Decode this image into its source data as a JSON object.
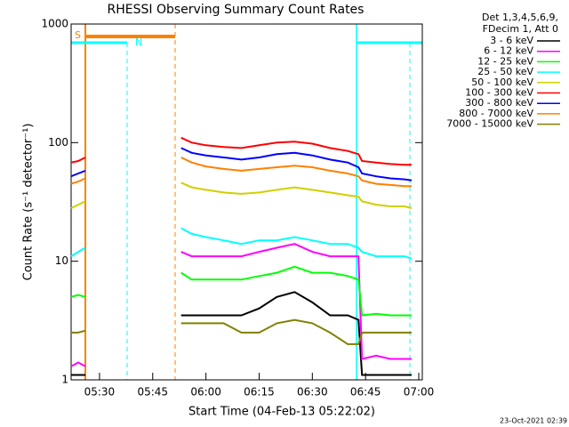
{
  "chart_data": {
    "type": "line",
    "title": "RHESSI Observing Summary Count Rates",
    "xlabel": "Start Time (04-Feb-13 05:22:02)",
    "ylabel": "Count Rate (s⁻¹ detector⁻¹)",
    "legend_header": [
      "Det 1,3,4,5,6,9,",
      "FDecim 1, Att 0"
    ],
    "annotations": [
      "S",
      "N"
    ],
    "footer": "23-Oct-2021 02:39",
    "log_y": true,
    "xlim": [
      "05:22",
      "07:01"
    ],
    "xticks": [
      "05:30",
      "05:45",
      "06:00",
      "06:15",
      "06:30",
      "06:45",
      "07:00"
    ],
    "ylim": [
      1,
      1000
    ],
    "yticks": [
      1,
      10,
      100,
      1000
    ],
    "x": [
      "05:22",
      "05:24",
      "05:26",
      "05:40",
      "05:53",
      "05:56",
      "06:00",
      "06:05",
      "06:10",
      "06:15",
      "06:20",
      "06:25",
      "06:30",
      "06:35",
      "06:40",
      "06:43",
      "06:44",
      "06:48",
      "06:52",
      "06:56",
      "06:58"
    ],
    "series": [
      {
        "name": "3 - 6 keV",
        "color": "#000000",
        "values": [
          1.1,
          1.1,
          1.1,
          null,
          3.5,
          3.5,
          3.5,
          3.5,
          3.5,
          4,
          5,
          5.5,
          4.5,
          3.5,
          3.5,
          3.2,
          1.1,
          1.1,
          1.1,
          1.1,
          1.1
        ]
      },
      {
        "name": "6 - 12 keV",
        "color": "#ff00ff",
        "values": [
          1.3,
          1.4,
          1.3,
          null,
          12,
          11,
          11,
          11,
          11,
          12,
          13,
          14,
          12,
          11,
          11,
          11,
          1.5,
          1.6,
          1.5,
          1.5,
          1.5
        ]
      },
      {
        "name": "12 - 25 keV",
        "color": "#00ff00",
        "values": [
          5,
          5.2,
          5,
          null,
          8,
          7,
          7,
          7,
          7,
          7.5,
          8,
          9,
          8,
          8,
          7.5,
          7,
          3.5,
          3.6,
          3.5,
          3.5,
          3.5
        ]
      },
      {
        "name": "25 - 50 keV",
        "color": "#00ffff",
        "values": [
          11,
          12,
          13,
          null,
          19,
          17,
          16,
          15,
          14,
          15,
          15,
          16,
          15,
          14,
          14,
          13,
          12,
          11,
          11,
          11,
          10.5
        ]
      },
      {
        "name": "50 - 100 keV",
        "color": "#d0d000",
        "values": [
          28,
          30,
          32,
          null,
          46,
          42,
          40,
          38,
          37,
          38,
          40,
          42,
          40,
          38,
          36,
          35,
          32,
          30,
          29,
          29,
          28
        ]
      },
      {
        "name": "100 - 300 keV",
        "color": "#ff0000",
        "values": [
          68,
          70,
          75,
          null,
          110,
          100,
          95,
          92,
          90,
          95,
          100,
          102,
          98,
          90,
          85,
          80,
          70,
          68,
          66,
          65,
          65
        ]
      },
      {
        "name": "300 - 800 keV",
        "color": "#0000ff",
        "values": [
          52,
          55,
          58,
          null,
          90,
          82,
          78,
          75,
          72,
          75,
          80,
          82,
          78,
          72,
          68,
          62,
          55,
          52,
          50,
          49,
          48
        ]
      },
      {
        "name": "800 - 7000 keV",
        "color": "#ff8000",
        "values": [
          45,
          47,
          50,
          null,
          75,
          68,
          63,
          60,
          58,
          60,
          62,
          64,
          62,
          58,
          55,
          52,
          48,
          45,
          44,
          43,
          43
        ]
      },
      {
        "name": "7000 - 15000 keV",
        "color": "#808000",
        "values": [
          2.5,
          2.5,
          2.6,
          null,
          3,
          3,
          3,
          3,
          2.5,
          2.5,
          3,
          3.2,
          3,
          2.5,
          2,
          2,
          2.5,
          2.5,
          2.5,
          2.5,
          2.5
        ]
      }
    ]
  }
}
